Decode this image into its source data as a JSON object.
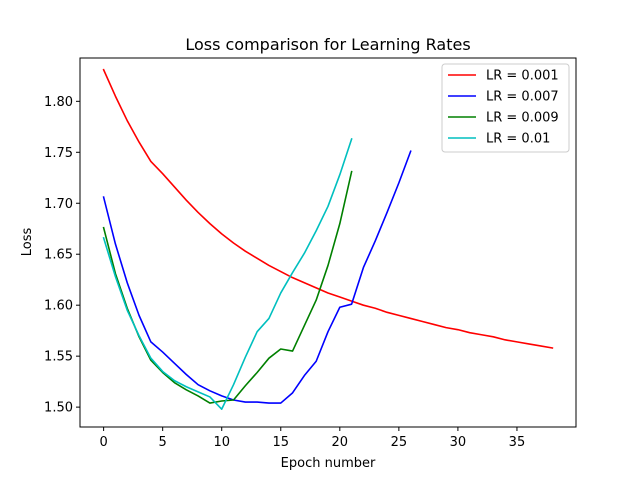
{
  "chart_data": {
    "type": "line",
    "title": "Loss comparison for Learning Rates",
    "xlabel": "Epoch number",
    "ylabel": "Loss",
    "xlim": [
      -2,
      40
    ],
    "ylim": [
      1.4805,
      1.8425
    ],
    "xticks": [
      0,
      5,
      10,
      15,
      20,
      25,
      30,
      35
    ],
    "yticks": [
      1.5,
      1.55,
      1.6,
      1.65,
      1.7,
      1.75,
      1.8
    ],
    "ytick_labels": [
      "1.50",
      "1.55",
      "1.60",
      "1.65",
      "1.70",
      "1.75",
      "1.80"
    ],
    "grid": false,
    "legend_position": "upper right",
    "series": [
      {
        "name": "LR = 0.001",
        "color": "#ff0000",
        "x": [
          0,
          1,
          2,
          3,
          4,
          5,
          6,
          7,
          8,
          9,
          10,
          11,
          12,
          13,
          14,
          15,
          16,
          17,
          18,
          19,
          20,
          21,
          22,
          23,
          24,
          25,
          26,
          27,
          28,
          29,
          30,
          31,
          32,
          33,
          34,
          35,
          36,
          37,
          38
        ],
        "values": [
          1.831,
          1.805,
          1.781,
          1.76,
          1.741,
          1.729,
          1.716,
          1.703,
          1.691,
          1.68,
          1.67,
          1.661,
          1.653,
          1.646,
          1.639,
          1.633,
          1.627,
          1.622,
          1.617,
          1.612,
          1.608,
          1.604,
          1.6,
          1.597,
          1.593,
          1.59,
          1.587,
          1.584,
          1.581,
          1.578,
          1.576,
          1.573,
          1.571,
          1.569,
          1.566,
          1.564,
          1.562,
          1.56,
          1.558
        ]
      },
      {
        "name": "LR = 0.007",
        "color": "#0000ff",
        "x": [
          0,
          1,
          2,
          3,
          4,
          5,
          6,
          7,
          8,
          9,
          10,
          11,
          12,
          13,
          14,
          15,
          16,
          17,
          18,
          19,
          20,
          21,
          22,
          23,
          24,
          25,
          26
        ],
        "values": [
          1.706,
          1.66,
          1.622,
          1.59,
          1.564,
          1.554,
          1.543,
          1.532,
          1.522,
          1.516,
          1.511,
          1.507,
          1.505,
          1.505,
          1.504,
          1.504,
          1.514,
          1.531,
          1.545,
          1.574,
          1.598,
          1.601,
          1.637,
          1.663,
          1.691,
          1.72,
          1.751
        ]
      },
      {
        "name": "LR = 0.009",
        "color": "#008000",
        "x": [
          0,
          1,
          2,
          3,
          4,
          5,
          6,
          7,
          8,
          9,
          10,
          11,
          12,
          13,
          14,
          15,
          16,
          17,
          18,
          19,
          20,
          21
        ],
        "values": [
          1.676,
          1.631,
          1.597,
          1.569,
          1.546,
          1.534,
          1.524,
          1.517,
          1.511,
          1.504,
          1.506,
          1.507,
          1.521,
          1.534,
          1.548,
          1.557,
          1.555,
          1.58,
          1.605,
          1.639,
          1.68,
          1.731
        ]
      },
      {
        "name": "LR = 0.01",
        "color": "#00bfbf",
        "x": [
          0,
          1,
          2,
          3,
          4,
          5,
          6,
          7,
          8,
          9,
          10,
          11,
          12,
          13,
          14,
          15,
          16,
          17,
          18,
          19,
          20,
          21
        ],
        "values": [
          1.666,
          1.628,
          1.595,
          1.57,
          1.548,
          1.535,
          1.526,
          1.52,
          1.515,
          1.51,
          1.498,
          1.522,
          1.549,
          1.574,
          1.587,
          1.612,
          1.632,
          1.651,
          1.673,
          1.697,
          1.728,
          1.763
        ]
      }
    ]
  }
}
